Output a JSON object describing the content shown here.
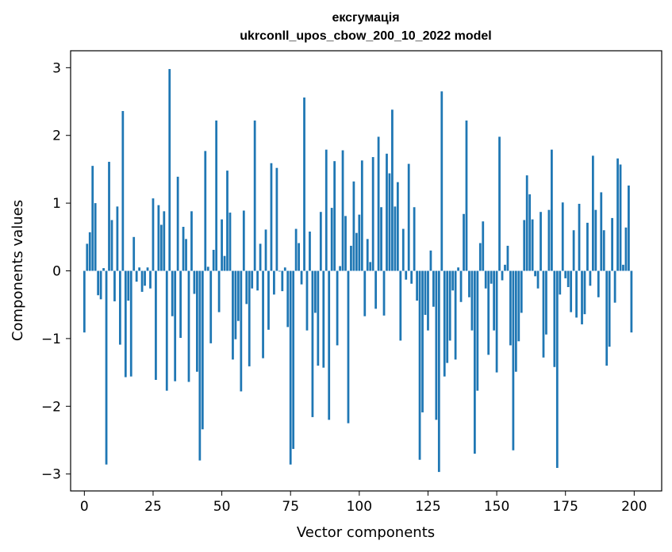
{
  "chart_data": {
    "type": "bar",
    "title": "ексгумація",
    "subtitle": "ukrconll_upos_cbow_200_10_2022 model",
    "xlabel": "Vector components",
    "ylabel": "Components values",
    "xlim": [
      -5,
      210
    ],
    "ylim": [
      -3.25,
      3.25
    ],
    "xticks": [
      0,
      25,
      50,
      75,
      100,
      125,
      150,
      175,
      200
    ],
    "xtick_labels": [
      "0",
      "25",
      "50",
      "75",
      "100",
      "125",
      "150",
      "175",
      "200"
    ],
    "yticks": [
      -3,
      -2,
      -1,
      0,
      1,
      2,
      3
    ],
    "ytick_labels": [
      "−3",
      "−2",
      "−1",
      "0",
      "1",
      "2",
      "3"
    ],
    "grid": false,
    "bar_color": "#1f77b4",
    "x": [
      0,
      1,
      2,
      3,
      4,
      5,
      6,
      7,
      8,
      9,
      10,
      11,
      12,
      13,
      14,
      15,
      16,
      17,
      18,
      19,
      20,
      21,
      22,
      23,
      24,
      25,
      26,
      27,
      28,
      29,
      30,
      31,
      32,
      33,
      34,
      35,
      36,
      37,
      38,
      39,
      40,
      41,
      42,
      43,
      44,
      45,
      46,
      47,
      48,
      49,
      50,
      51,
      52,
      53,
      54,
      55,
      56,
      57,
      58,
      59,
      60,
      61,
      62,
      63,
      64,
      65,
      66,
      67,
      68,
      69,
      70,
      71,
      72,
      73,
      74,
      75,
      76,
      77,
      78,
      79,
      80,
      81,
      82,
      83,
      84,
      85,
      86,
      87,
      88,
      89,
      90,
      91,
      92,
      93,
      94,
      95,
      96,
      97,
      98,
      99,
      100,
      101,
      102,
      103,
      104,
      105,
      106,
      107,
      108,
      109,
      110,
      111,
      112,
      113,
      114,
      115,
      116,
      117,
      118,
      119,
      120,
      121,
      122,
      123,
      124,
      125,
      126,
      127,
      128,
      129,
      130,
      131,
      132,
      133,
      134,
      135,
      136,
      137,
      138,
      139,
      140,
      141,
      142,
      143,
      144,
      145,
      146,
      147,
      148,
      149,
      150,
      151,
      152,
      153,
      154,
      155,
      156,
      157,
      158,
      159,
      160,
      161,
      162,
      163,
      164,
      165,
      166,
      167,
      168,
      169,
      170,
      171,
      172,
      173,
      174,
      175,
      176,
      177,
      178,
      179,
      180,
      181,
      182,
      183,
      184,
      185,
      186,
      187,
      188,
      189,
      190,
      191,
      192,
      193,
      194,
      195,
      196,
      197,
      198,
      199
    ],
    "values": [
      -0.91,
      0.4,
      0.57,
      1.55,
      1.0,
      -0.36,
      -0.42,
      0.04,
      -2.86,
      1.61,
      0.75,
      -0.45,
      0.95,
      -1.09,
      2.36,
      -1.57,
      -0.44,
      -1.56,
      0.5,
      -0.16,
      0.05,
      -0.31,
      -0.22,
      0.05,
      -0.26,
      1.07,
      -1.61,
      0.97,
      0.68,
      0.88,
      -1.77,
      2.98,
      -0.67,
      -1.63,
      1.39,
      -0.99,
      0.65,
      0.47,
      -1.64,
      0.88,
      -0.34,
      -1.49,
      -2.8,
      -2.34,
      1.77,
      0.06,
      -1.07,
      0.31,
      2.22,
      -0.61,
      0.76,
      0.22,
      1.48,
      0.86,
      -1.31,
      -1.01,
      -0.74,
      -1.78,
      0.89,
      -0.49,
      -1.41,
      -0.26,
      2.22,
      -0.29,
      0.4,
      -1.29,
      0.61,
      -0.87,
      1.59,
      -0.35,
      1.52,
      -0.01,
      -0.3,
      0.05,
      -0.83,
      -2.86,
      -2.63,
      0.62,
      0.41,
      -0.2,
      2.56,
      -0.88,
      0.58,
      -2.16,
      -0.62,
      -1.4,
      0.87,
      -1.43,
      1.79,
      -2.2,
      0.93,
      1.62,
      -1.1,
      0.07,
      1.78,
      0.81,
      -2.25,
      0.37,
      1.32,
      0.56,
      0.83,
      1.63,
      -0.67,
      0.47,
      0.13,
      1.68,
      -0.56,
      1.98,
      0.94,
      -0.66,
      1.73,
      1.44,
      2.38,
      0.95,
      1.31,
      -1.03,
      0.62,
      -0.13,
      1.58,
      -0.19,
      0.94,
      -0.44,
      -2.79,
      -2.09,
      -0.65,
      -0.88,
      0.3,
      -0.53,
      -2.2,
      -2.97,
      2.65,
      -1.56,
      -1.36,
      -1.03,
      -0.29,
      -1.31,
      0.05,
      -0.46,
      0.84,
      2.22,
      -0.39,
      -0.88,
      -2.7,
      -1.77,
      0.41,
      0.73,
      -0.26,
      -1.24,
      -0.19,
      -0.88,
      -1.5,
      1.98,
      -0.14,
      0.09,
      0.37,
      -1.1,
      -2.65,
      -1.49,
      -1.04,
      -0.62,
      0.75,
      1.41,
      1.13,
      0.76,
      -0.08,
      -0.26,
      0.87,
      -1.28,
      -0.94,
      0.9,
      1.79,
      -1.42,
      -2.91,
      -0.35,
      1.01,
      -0.11,
      -0.24,
      -0.61,
      0.6,
      -0.69,
      0.99,
      -0.79,
      -0.64,
      0.71,
      -0.22,
      1.7,
      0.9,
      -0.39,
      1.16,
      0.6,
      -1.4,
      -1.12,
      0.78,
      -0.47,
      1.66,
      1.57,
      0.09,
      0.64,
      1.26,
      -0.91
    ]
  }
}
